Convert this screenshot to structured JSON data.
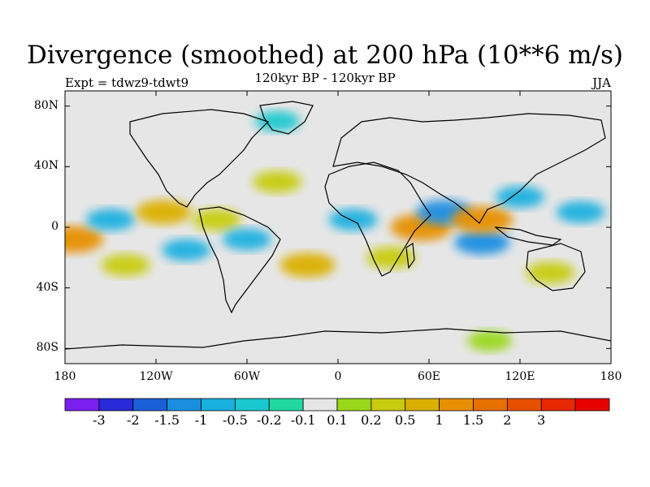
{
  "header": {
    "title": "Divergence (smoothed) at 200 hPa (10**6 m/s)",
    "subtitle": "120kyr BP - 120kyr BP",
    "experiment": "Expt = tdwz9-tdwt9",
    "season": "JJA"
  },
  "map": {
    "projection": "cylindrical equidistant",
    "lon_range": [
      -180,
      180
    ],
    "lat_range": [
      -90,
      90
    ],
    "background_color": "#e6e6e6",
    "coastline_color": "#000000",
    "y_ticks": [
      {
        "value": 80,
        "label": "80N"
      },
      {
        "value": 40,
        "label": "40N"
      },
      {
        "value": 0,
        "label": "0"
      },
      {
        "value": -40,
        "label": "40S"
      },
      {
        "value": -80,
        "label": "80S"
      }
    ],
    "x_ticks": [
      {
        "value": -180,
        "label": "180"
      },
      {
        "value": -120,
        "label": "120W"
      },
      {
        "value": -60,
        "label": "60W"
      },
      {
        "value": 0,
        "label": "0"
      },
      {
        "value": 60,
        "label": "60E"
      },
      {
        "value": 120,
        "label": "120E"
      },
      {
        "value": 180,
        "label": "180"
      }
    ]
  },
  "colorbar": {
    "colors": [
      "#7b1ff0",
      "#2a2ad8",
      "#1a5fd8",
      "#1a8fe0",
      "#1ab0e0",
      "#1ac8d0",
      "#20d8a0",
      "#e6e6e6",
      "#9ad81a",
      "#c8cc10",
      "#dcb000",
      "#e69000",
      "#e87000",
      "#e85000",
      "#e82800",
      "#e80000"
    ],
    "labels": [
      "-3",
      "-2",
      "-1.5",
      "-1",
      "-0.5",
      "-0.2",
      "-0.1",
      "0.1",
      "0.2",
      "0.5",
      "1",
      "1.5",
      "2",
      "3"
    ]
  },
  "chart_data": {
    "type": "heatmap",
    "title": "Divergence (smoothed) at 200 hPa (10**6 m/s)",
    "subtitle": "120kyr BP - 120kyr BP",
    "x_range": [
      -180,
      180
    ],
    "y_range": [
      -90,
      90
    ],
    "levels": [
      -3,
      -2,
      -1.5,
      -1,
      -0.5,
      -0.2,
      -0.1,
      0.1,
      0.2,
      0.5,
      1,
      1.5,
      2,
      3
    ],
    "features": [
      {
        "lon": -175,
        "lat": -8,
        "value": 1.5
      },
      {
        "lon": -150,
        "lat": 5,
        "value": -0.5
      },
      {
        "lon": -140,
        "lat": -25,
        "value": 0.5
      },
      {
        "lon": -115,
        "lat": 10,
        "value": 1
      },
      {
        "lon": -100,
        "lat": -15,
        "value": -0.5
      },
      {
        "lon": -80,
        "lat": 5,
        "value": 0.5
      },
      {
        "lon": -60,
        "lat": -8,
        "value": -0.5
      },
      {
        "lon": -40,
        "lat": 30,
        "value": 0.5
      },
      {
        "lon": -20,
        "lat": -25,
        "value": 1
      },
      {
        "lon": 10,
        "lat": 5,
        "value": -0.5
      },
      {
        "lon": 35,
        "lat": -20,
        "value": 0.5
      },
      {
        "lon": 55,
        "lat": 0,
        "value": 1.5
      },
      {
        "lon": 70,
        "lat": 10,
        "value": -1
      },
      {
        "lon": 95,
        "lat": -10,
        "value": -1
      },
      {
        "lon": 95,
        "lat": 5,
        "value": 1.5
      },
      {
        "lon": 120,
        "lat": 20,
        "value": -0.5
      },
      {
        "lon": 140,
        "lat": -30,
        "value": 0.5
      },
      {
        "lon": 160,
        "lat": 10,
        "value": -0.5
      },
      {
        "lon": 100,
        "lat": -75,
        "value": 0.2
      },
      {
        "lon": -40,
        "lat": 70,
        "value": -0.2
      }
    ]
  }
}
